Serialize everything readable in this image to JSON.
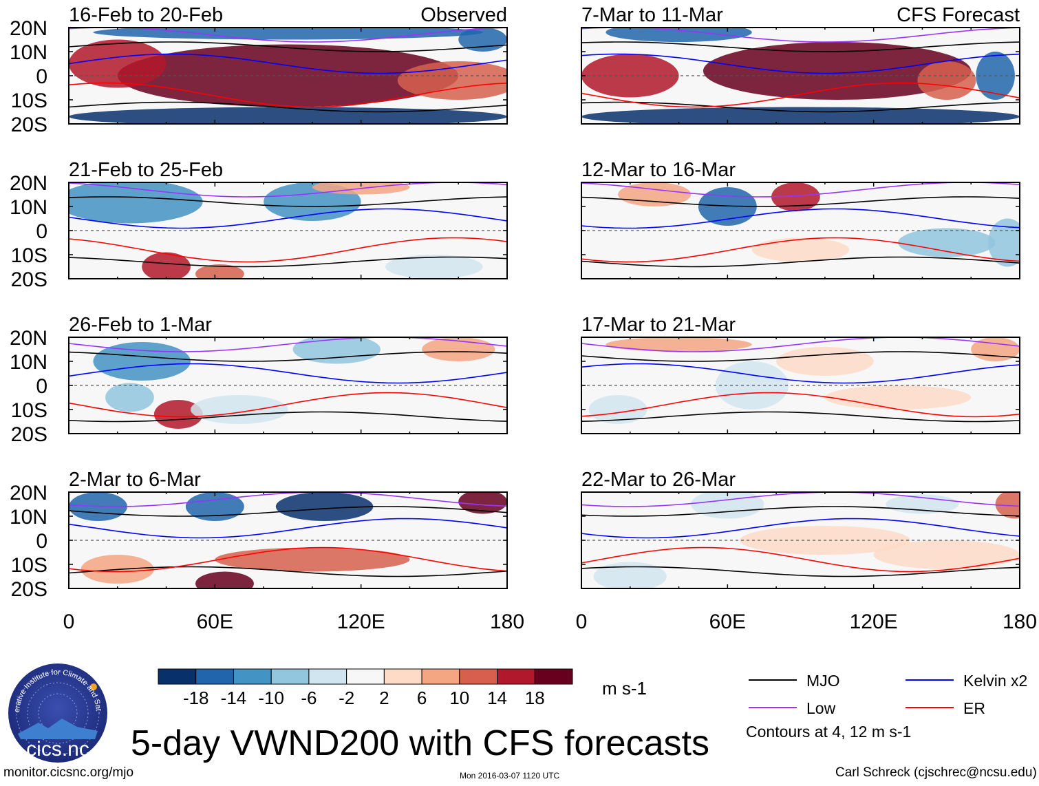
{
  "chart_data": {
    "type": "heatmap",
    "title": "5-day VWND200 with CFS forecasts",
    "variable": "VWND200",
    "units": "m s-1",
    "columns": [
      {
        "label": "Observed",
        "panels": [
          "16-Feb to 20-Feb",
          "21-Feb to 25-Feb",
          "26-Feb to 1-Mar",
          "2-Mar to 6-Mar"
        ]
      },
      {
        "label": "CFS Forecast",
        "panels": [
          "7-Mar to 11-Mar",
          "12-Mar to 16-Mar",
          "17-Mar to 21-Mar",
          "22-Mar to 26-Mar"
        ]
      }
    ],
    "lat_ticks": [
      "20N",
      "10N",
      "0",
      "10S",
      "20S"
    ],
    "lat_range": [
      -20,
      20
    ],
    "lon_ticks": [
      "0",
      "60E",
      "120E",
      "180"
    ],
    "lon_range": [
      0,
      180
    ],
    "colorbar": {
      "labels": [
        "-18",
        "-14",
        "-10",
        "-6",
        "-2",
        "2",
        "6",
        "10",
        "14",
        "18"
      ],
      "colors": [
        "#08306b",
        "#2166ac",
        "#4393c3",
        "#92c5de",
        "#d1e5f0",
        "#f7f7f7",
        "#fddbc7",
        "#f4a582",
        "#d6604d",
        "#b2182b",
        "#67001f"
      ]
    },
    "legend": [
      {
        "label": "MJO",
        "color": "#000000"
      },
      {
        "label": "Kelvin x2",
        "color": "#0000ff"
      },
      {
        "label": "Low",
        "color": "#9933ff"
      },
      {
        "label": "ER",
        "color": "#ff0000"
      }
    ],
    "contour_note": "Contours at 4, 12 m s-1",
    "equator_line": "dashed"
  },
  "footer": {
    "url": "monitor.cicsnc.org/mjo",
    "timestamp": "Mon 2016-03-07 1120 UTC",
    "author": "Carl Schreck (cjschrec@ncsu.edu)"
  },
  "logo": {
    "text": "cics.nc",
    "ring_text": "Cooperative Institute for Climate and Satellites"
  }
}
